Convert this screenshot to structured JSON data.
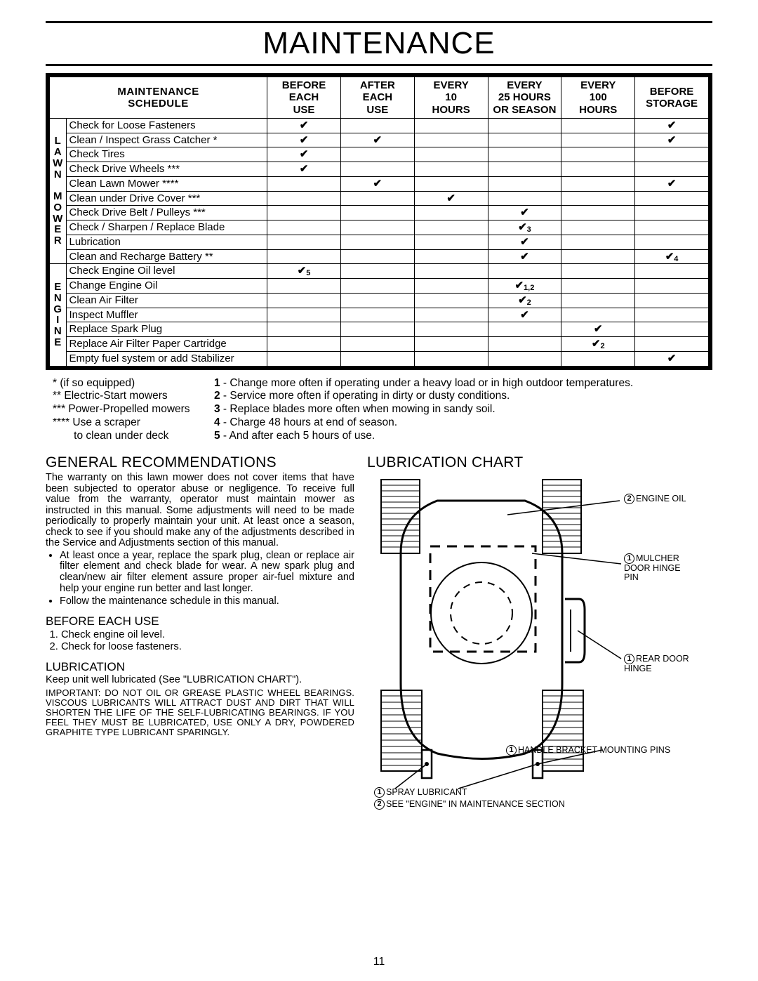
{
  "page_title": "MAINTENANCE",
  "page_number": "11",
  "schedule": {
    "title_line1": "MAINTENANCE",
    "title_line2": "SCHEDULE",
    "headers": [
      "BEFORE\nEACH\nUSE",
      "AFTER\nEACH\nUSE",
      "EVERY\n10\nHOURS",
      "EVERY\n25 HOURS\nOR SEASON",
      "EVERY\n100\nHOURS",
      "BEFORE\nSTORAGE"
    ],
    "groups": [
      {
        "label": "LAWN MOWER",
        "rows": [
          {
            "task": "Check for Loose Fasteners",
            "marks": [
              "✔",
              "",
              "",
              "",
              "",
              "✔"
            ]
          },
          {
            "task": "Clean / Inspect Grass Catcher *",
            "marks": [
              "✔",
              "✔",
              "",
              "",
              "",
              "✔"
            ]
          },
          {
            "task": "Check Tires",
            "marks": [
              "✔",
              "",
              "",
              "",
              "",
              ""
            ]
          },
          {
            "task": "Check Drive Wheels ***",
            "marks": [
              "✔",
              "",
              "",
              "",
              "",
              ""
            ]
          },
          {
            "task": "Clean Lawn Mower ****",
            "marks": [
              "",
              "✔",
              "",
              "",
              "",
              "✔"
            ]
          },
          {
            "task": "Clean under Drive Cover ***",
            "marks": [
              "",
              "",
              "✔",
              "",
              "",
              ""
            ]
          },
          {
            "task": "Check Drive Belt / Pulleys ***",
            "marks": [
              "",
              "",
              "",
              "✔",
              "",
              ""
            ]
          },
          {
            "task": "Check / Sharpen / Replace Blade",
            "marks": [
              "",
              "",
              "",
              "✔3",
              "",
              ""
            ]
          },
          {
            "task": "Lubrication",
            "marks": [
              "",
              "",
              "",
              "✔",
              "",
              ""
            ]
          },
          {
            "task": "Clean and Recharge Battery **",
            "marks": [
              "",
              "",
              "",
              "✔",
              "",
              "✔4"
            ]
          }
        ]
      },
      {
        "label": "ENGINE",
        "rows": [
          {
            "task": "Check Engine Oil level",
            "marks": [
              "✔5",
              "",
              "",
              "",
              "",
              ""
            ]
          },
          {
            "task": "Change Engine Oil",
            "marks": [
              "",
              "",
              "",
              "✔1,2",
              "",
              ""
            ]
          },
          {
            "task": "Clean Air Filter",
            "marks": [
              "",
              "",
              "",
              "✔2",
              "",
              ""
            ]
          },
          {
            "task": "Inspect Muffler",
            "marks": [
              "",
              "",
              "",
              "✔",
              "",
              ""
            ]
          },
          {
            "task": "Replace Spark Plug",
            "marks": [
              "",
              "",
              "",
              "",
              "✔",
              ""
            ]
          },
          {
            "task": "Replace Air Filter Paper Cartridge",
            "marks": [
              "",
              "",
              "",
              "",
              "✔2",
              ""
            ]
          },
          {
            "task": "Empty fuel system or add Stabilizer",
            "marks": [
              "",
              "",
              "",
              "",
              "",
              "✔"
            ]
          }
        ]
      }
    ]
  },
  "footnotes_left": [
    "* (if so equipped)",
    "** Electric-Start mowers",
    "*** Power-Propelled mowers",
    "**** Use a scraper",
    "       to clean under deck"
  ],
  "footnotes_right": [
    "1 - Change more often if operating under a heavy load or in high outdoor temperatures.",
    "2 - Service more often if operating in dirty or dusty conditions.",
    "3 - Replace blades more often when mowing in sandy soil.",
    "4 - Charge 48 hours at end of season.",
    "5 - And after each 5 hours of use."
  ],
  "gen_rec": {
    "heading": "GENERAL RECOMMENDATIONS",
    "para": "The warranty on this lawn mower does not cover items that have been subjected to operator abuse or negligence. To receive full value from the warranty, operator must maintain mower as instructed in this manual. Some adjustments will need to be made periodically to properly maintain your unit. At least once a season, check to see if you should make any of the adjustments described in the Service and Adjustments section of this manual.",
    "bullets": [
      "At least once a year, replace the spark plug, clean or replace air filter element and check blade for wear. A new spark plug and clean/new air filter element assure proper air-fuel mixture and help your engine run better and last longer.",
      "Follow the maintenance schedule in this manual."
    ]
  },
  "before_each": {
    "heading": "BEFORE EACH USE",
    "items": [
      "Check engine oil level.",
      "Check for loose fasteners."
    ]
  },
  "lubrication": {
    "heading": "LUBRICATION",
    "para": "Keep unit well lubricated (See \"LUBRICATION CHART\").",
    "important": "IMPORTANT: DO NOT OIL OR GREASE PLASTIC WHEEL BEARINGS. VISCOUS LUBRICANTS WILL ATTRACT DUST AND DIRT THAT WILL SHORTEN THE LIFE OF THE SELF-LUBRICATING BEARINGS. IF YOU FEEL THEY MUST BE LUBRICATED, USE ONLY A DRY, POWDERED GRAPHITE TYPE LUBRICANT SPARINGLY."
  },
  "lube_chart": {
    "heading": "LUBRICATION CHART",
    "labels": {
      "engine_oil": "ENGINE OIL",
      "mulcher": "MULCHER DOOR HINGE PIN",
      "rear_door": "REAR DOOR HINGE",
      "handle": "HANDLE BRACKET MOUNTING PINS",
      "spray": "SPRAY LUBRICANT",
      "see_engine": "SEE \"ENGINE\" IN MAINTENANCE SECTION"
    }
  }
}
